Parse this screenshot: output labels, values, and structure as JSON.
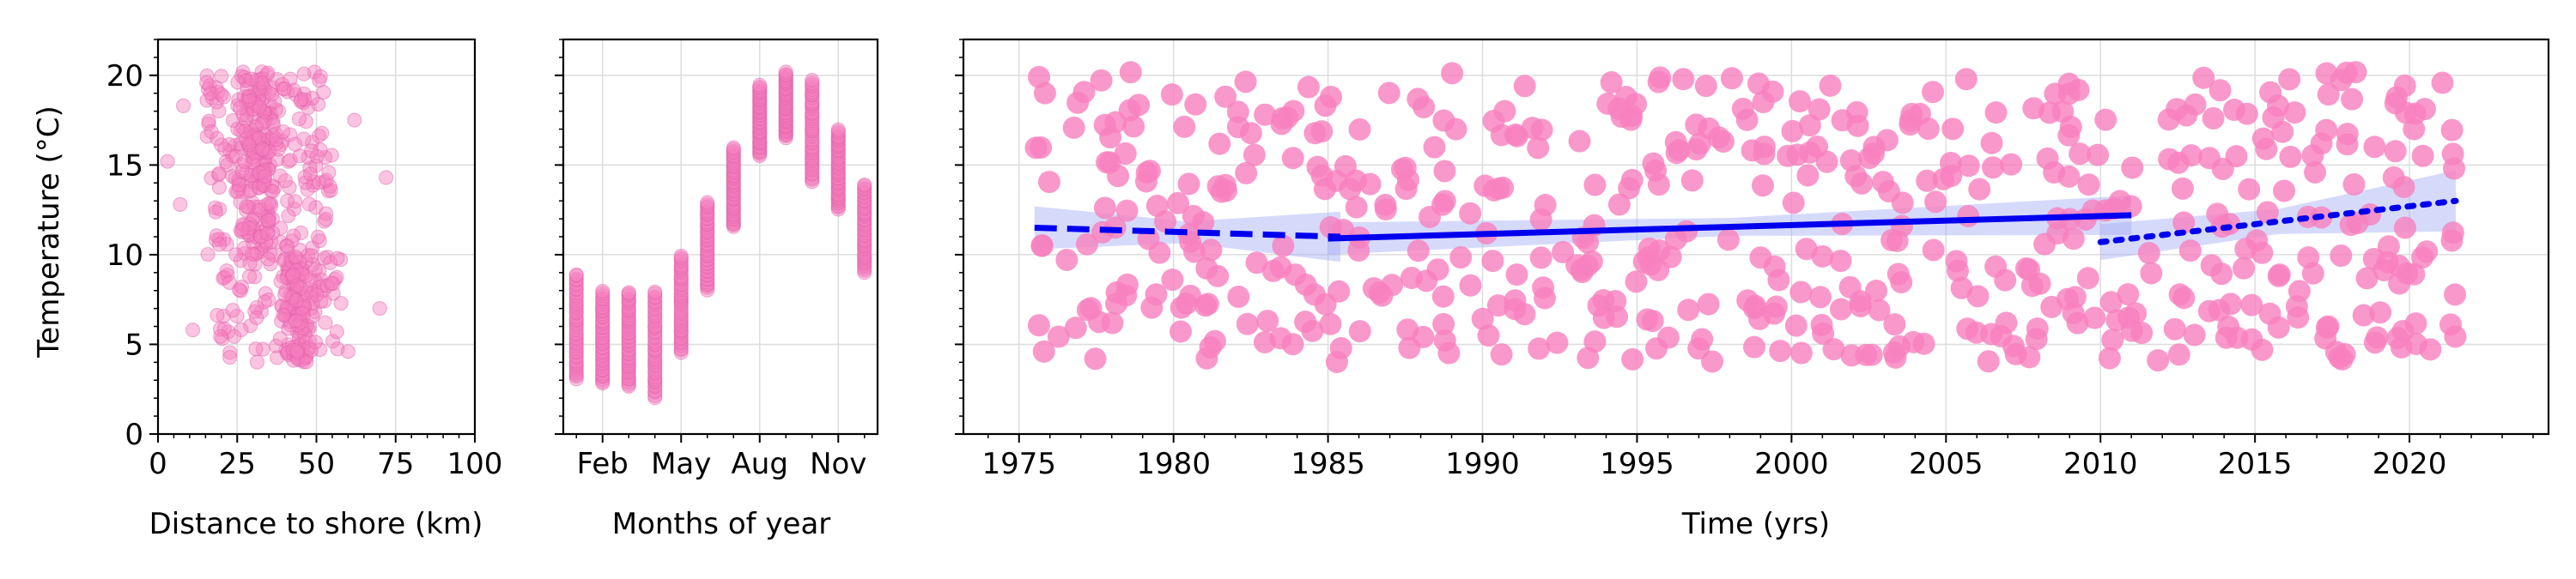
{
  "y_axis_label": "Temperature (°C)",
  "colors": {
    "points": "#f77fbe",
    "trend": "#0000ee",
    "band": "#a3adf5"
  },
  "chart_data": [
    {
      "type": "scatter",
      "xlabel": "Distance to shore (km)",
      "ylabel": "Temperature (°C)",
      "xlim": [
        0,
        100
      ],
      "ylim": [
        0,
        22
      ],
      "xticks": [
        "0",
        "25",
        "50",
        "75",
        "100"
      ],
      "yticks": [
        "0",
        "5",
        "10",
        "15",
        "20"
      ],
      "grid": true,
      "n_points": 560,
      "x_range_main": [
        15,
        58
      ],
      "y_range": [
        2,
        20.2
      ],
      "outliers": [
        {
          "x": 3,
          "y": 15.2
        },
        {
          "x": 7,
          "y": 12.8
        },
        {
          "x": 8,
          "y": 18.3
        },
        {
          "x": 11,
          "y": 5.8
        },
        {
          "x": 72,
          "y": 14.3
        },
        {
          "x": 70,
          "y": 7.0
        },
        {
          "x": 62,
          "y": 17.5
        },
        {
          "x": 60,
          "y": 4.6
        }
      ]
    },
    {
      "type": "scatter",
      "xlabel": "Months of year",
      "xlim": [
        0.5,
        12.5
      ],
      "ylim": [
        0,
        22
      ],
      "xticks": [
        "Feb",
        "May",
        "Aug",
        "Nov"
      ],
      "xtick_months": [
        2,
        5,
        8,
        11
      ],
      "grid": true,
      "monthly": [
        {
          "month": 1,
          "min": 3.0,
          "max": 9.0
        },
        {
          "month": 2,
          "min": 2.8,
          "max": 8.0
        },
        {
          "month": 3,
          "min": 2.6,
          "max": 8.0
        },
        {
          "month": 4,
          "min": 2.0,
          "max": 8.0
        },
        {
          "month": 5,
          "min": 4.5,
          "max": 10.0
        },
        {
          "month": 6,
          "min": 8.0,
          "max": 13.0
        },
        {
          "month": 7,
          "min": 11.5,
          "max": 16.0
        },
        {
          "month": 8,
          "min": 15.5,
          "max": 19.5
        },
        {
          "month": 9,
          "min": 16.5,
          "max": 20.2
        },
        {
          "month": 10,
          "min": 14.0,
          "max": 19.8
        },
        {
          "month": 11,
          "min": 12.5,
          "max": 17.0
        },
        {
          "month": 12,
          "min": 9.0,
          "max": 14.0
        }
      ]
    },
    {
      "type": "scatter",
      "xlabel": "Time (yrs)",
      "xlim": [
        1973.2,
        2024.5
      ],
      "ylim": [
        0,
        22
      ],
      "xticks": [
        "1975",
        "1980",
        "1985",
        "1990",
        "1995",
        "2000",
        "2005",
        "2010",
        "2015",
        "2020"
      ],
      "grid": true,
      "n_points": 560,
      "x_range": [
        1975.5,
        2021.5
      ],
      "y_range": [
        2,
        20.2
      ],
      "trends": [
        {
          "style": "dashed",
          "x": [
            1975.5,
            1985.4
          ],
          "y": [
            11.5,
            11.0
          ],
          "band": [
            1.2,
            0.6,
            1.4
          ]
        },
        {
          "style": "solid",
          "x": [
            1985.0,
            2011.0
          ],
          "y": [
            10.9,
            12.2
          ],
          "band": [
            0.9,
            0.5,
            1.1
          ]
        },
        {
          "style": "dotted",
          "x": [
            2010.0,
            2021.5
          ],
          "y": [
            10.7,
            13.0
          ],
          "band": [
            1.0,
            0.7,
            1.7
          ]
        }
      ]
    }
  ]
}
